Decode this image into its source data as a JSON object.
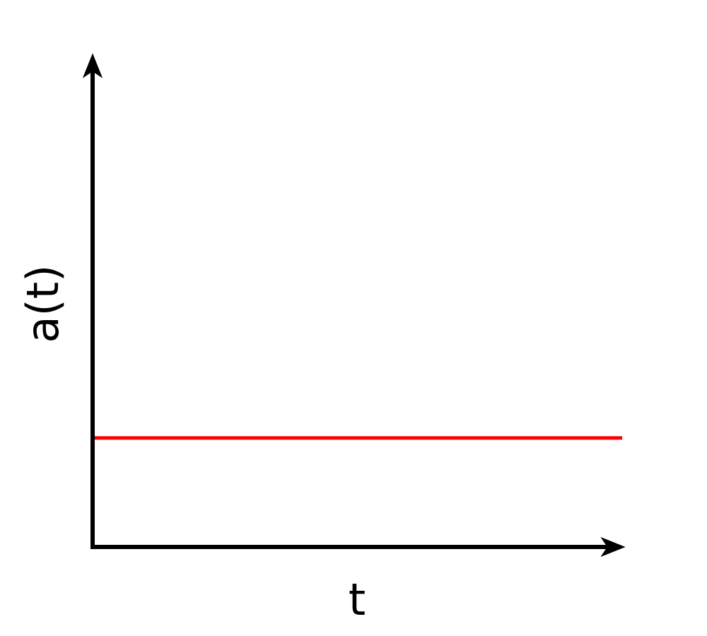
{
  "chart_data": {
    "type": "line",
    "xlabel": "t",
    "ylabel": "a(t)",
    "series": [
      {
        "color": "#ff0000",
        "x": [
          0,
          1
        ],
        "y": [
          1,
          1
        ]
      }
    ],
    "xlim": [
      0,
      1
    ],
    "ylim": [
      0,
      4.5
    ],
    "x_ticks": [],
    "y_ticks": [],
    "grid": false,
    "legend": "none",
    "axes_with_arrows": true,
    "axis_color": "#000000"
  }
}
